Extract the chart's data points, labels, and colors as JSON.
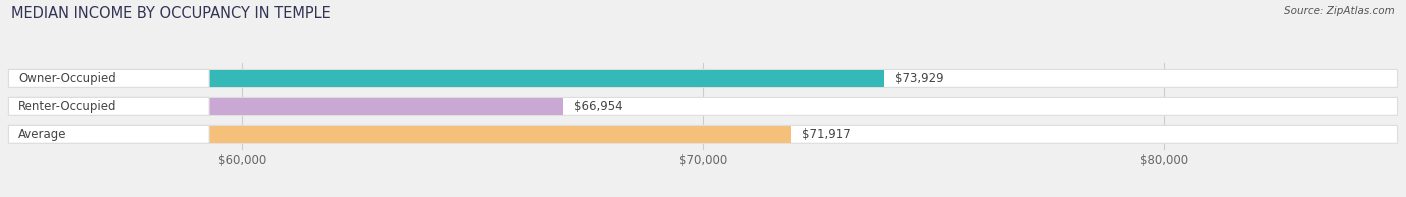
{
  "title": "MEDIAN INCOME BY OCCUPANCY IN TEMPLE",
  "source": "Source: ZipAtlas.com",
  "categories": [
    "Owner-Occupied",
    "Renter-Occupied",
    "Average"
  ],
  "values": [
    73929,
    66954,
    71917
  ],
  "bar_colors": [
    "#35b8b8",
    "#c9a8d4",
    "#f5c07a"
  ],
  "bar_bg_color": "#f0f0f0",
  "bar_track_color": "#ffffff",
  "bar_track_border": "#dddddd",
  "value_labels": [
    "$73,929",
    "$66,954",
    "$71,917"
  ],
  "xmin": 55000,
  "xmax": 85000,
  "xticks": [
    60000,
    70000,
    80000
  ],
  "xtick_labels": [
    "$60,000",
    "$70,000",
    "$80,000"
  ],
  "title_fontsize": 10.5,
  "label_fontsize": 8.5,
  "value_fontsize": 8.5,
  "source_fontsize": 7.5,
  "bar_height": 0.62,
  "fig_width": 14.06,
  "fig_height": 1.97,
  "fig_bg": "#f0f0f0",
  "title_color": "#333355",
  "source_color": "#555555"
}
